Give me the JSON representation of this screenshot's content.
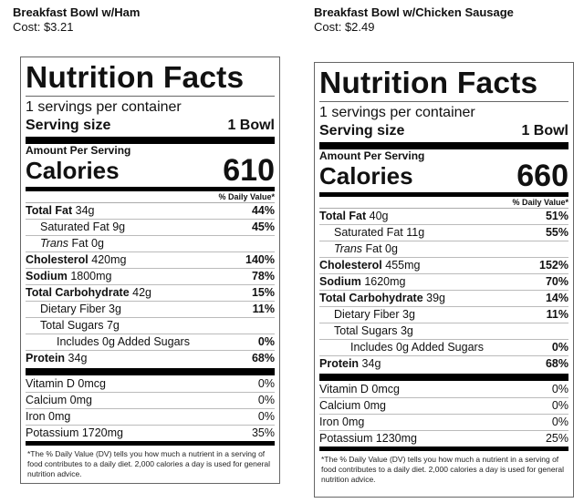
{
  "products": [
    {
      "title": "Breakfast Bowl w/Ham",
      "cost": "Cost: $3.21",
      "label": {
        "heading": "Nutrition Facts",
        "servings": "1 servings per container",
        "serving_size_label": "Serving size",
        "serving_size_value": "1 Bowl",
        "amount_per_serving": "Amount Per Serving",
        "calories_label": "Calories",
        "calories_value": "610",
        "dv_header": "% Daily Value*",
        "nutrients": [
          {
            "name": "Total Fat",
            "amount": "34g",
            "dv": "44%",
            "bold": true,
            "indent": 0
          },
          {
            "name": "Saturated Fat",
            "amount": "9g",
            "dv": "45%",
            "bold": false,
            "indent": 1
          },
          {
            "name": "Trans",
            "amount": "Fat 0g",
            "dv": "",
            "bold": false,
            "indent": 1,
            "italic": true
          },
          {
            "name": "Cholesterol",
            "amount": "420mg",
            "dv": "140%",
            "bold": true,
            "indent": 0
          },
          {
            "name": "Sodium",
            "amount": "1800mg",
            "dv": "78%",
            "bold": true,
            "indent": 0
          },
          {
            "name": "Total Carbohydrate",
            "amount": "42g",
            "dv": "15%",
            "bold": true,
            "indent": 0
          },
          {
            "name": "Dietary Fiber",
            "amount": "3g",
            "dv": "11%",
            "bold": false,
            "indent": 1
          },
          {
            "name": "Total Sugars",
            "amount": "7g",
            "dv": "",
            "bold": false,
            "indent": 1
          },
          {
            "name": "Includes 0g Added Sugars",
            "amount": "",
            "dv": "0%",
            "bold": false,
            "indent": 2
          },
          {
            "name": "Protein",
            "amount": "34g",
            "dv": "68%",
            "bold": true,
            "indent": 0
          }
        ],
        "vitamins": [
          {
            "name": "Vitamin D 0mcg",
            "dv": "0%"
          },
          {
            "name": "Calcium 0mg",
            "dv": "0%"
          },
          {
            "name": "Iron 0mg",
            "dv": "0%"
          },
          {
            "name": "Potassium 1720mg",
            "dv": "35%"
          }
        ],
        "footnote": "*The % Daily Value (DV) tells you how much a nutrient in a serving of food contributes to a daily diet. 2,000 calories a day is used for general nutrition advice."
      }
    },
    {
      "title": "Breakfast Bowl w/Chicken Sausage",
      "cost": "Cost: $2.49",
      "label": {
        "heading": "Nutrition Facts",
        "servings": "1 servings per container",
        "serving_size_label": "Serving size",
        "serving_size_value": "1 Bowl",
        "amount_per_serving": "Amount Per Serving",
        "calories_label": "Calories",
        "calories_value": "660",
        "dv_header": "% Daily Value*",
        "nutrients": [
          {
            "name": "Total Fat",
            "amount": "40g",
            "dv": "51%",
            "bold": true,
            "indent": 0
          },
          {
            "name": "Saturated Fat",
            "amount": "11g",
            "dv": "55%",
            "bold": false,
            "indent": 1
          },
          {
            "name": "Trans",
            "amount": "Fat 0g",
            "dv": "",
            "bold": false,
            "indent": 1,
            "italic": true
          },
          {
            "name": "Cholesterol",
            "amount": "455mg",
            "dv": "152%",
            "bold": true,
            "indent": 0
          },
          {
            "name": "Sodium",
            "amount": "1620mg",
            "dv": "70%",
            "bold": true,
            "indent": 0
          },
          {
            "name": "Total Carbohydrate",
            "amount": "39g",
            "dv": "14%",
            "bold": true,
            "indent": 0
          },
          {
            "name": "Dietary Fiber",
            "amount": "3g",
            "dv": "11%",
            "bold": false,
            "indent": 1
          },
          {
            "name": "Total Sugars",
            "amount": "3g",
            "dv": "",
            "bold": false,
            "indent": 1
          },
          {
            "name": "Includes 0g Added Sugars",
            "amount": "",
            "dv": "0%",
            "bold": false,
            "indent": 2
          },
          {
            "name": "Protein",
            "amount": "34g",
            "dv": "68%",
            "bold": true,
            "indent": 0
          }
        ],
        "vitamins": [
          {
            "name": "Vitamin D 0mcg",
            "dv": "0%"
          },
          {
            "name": "Calcium 0mg",
            "dv": "0%"
          },
          {
            "name": "Iron 0mg",
            "dv": "0%"
          },
          {
            "name": "Potassium 1230mg",
            "dv": "25%"
          }
        ],
        "footnote": "*The % Daily Value (DV) tells you how much a nutrient in a serving of food contributes to a daily diet. 2,000 calories a day is used for general nutrition advice."
      }
    }
  ]
}
